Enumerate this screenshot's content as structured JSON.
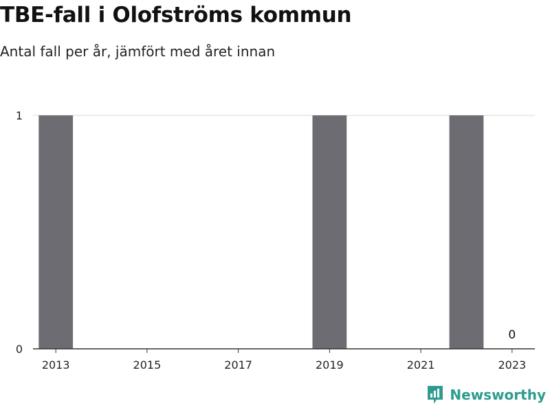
{
  "title": "TBE-fall i Olofströms kommun",
  "subtitle": "Antal fall per år, jämfört med året innan",
  "brand": "Newsworthy",
  "colors": {
    "bar": "#6d6c72",
    "grid": "#d9d9d9",
    "axis": "#333333",
    "brand": "#2d9b8f"
  },
  "chart_data": {
    "type": "bar",
    "x": [
      2013,
      2014,
      2015,
      2016,
      2017,
      2018,
      2019,
      2020,
      2021,
      2022,
      2023
    ],
    "values": [
      1,
      0,
      0,
      0,
      0,
      0,
      1,
      0,
      0,
      1,
      0
    ],
    "x_tick_labels": [
      "2013",
      "2015",
      "2017",
      "2019",
      "2021",
      "2023"
    ],
    "y_ticks": [
      0,
      1
    ],
    "ylim": [
      0,
      1
    ],
    "grid": true,
    "data_labels": [
      {
        "x": 2023,
        "text": "0"
      }
    ],
    "title": "TBE-fall i Olofströms kommun",
    "subtitle": "Antal fall per år, jämfört med året innan",
    "xlabel": "",
    "ylabel": ""
  }
}
